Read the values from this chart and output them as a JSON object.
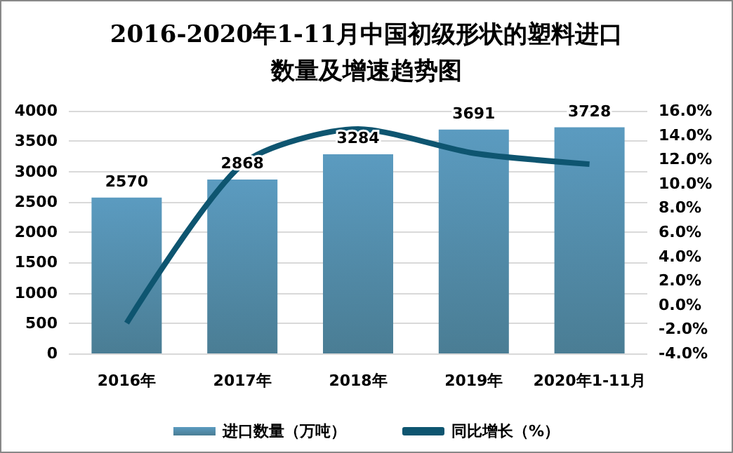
{
  "chart_data": {
    "type": "bar",
    "title": "2016-2020年1-11月中国初级形状的塑料进口数量及增速趋势图",
    "categories": [
      "2016年",
      "2017年",
      "2018年",
      "2019年",
      "2020年1-11月"
    ],
    "series": [
      {
        "name": "进口数量（万吨）",
        "color": "#5b9bc0",
        "values": [
          2570,
          2868,
          3284,
          3691,
          3728
        ],
        "data_labels": true
      },
      {
        "name": "同比增长（%）",
        "type": "line",
        "axis": "y2",
        "color": "#0e5570",
        "values": [
          -1.5,
          11.6,
          14.5,
          12.5,
          11.6
        ],
        "marker": "none"
      }
    ],
    "ylim": [
      0,
      4000
    ],
    "yticks": [
      0,
      500,
      1000,
      1500,
      2000,
      2500,
      3000,
      3500,
      4000
    ],
    "y2lim": [
      -4,
      16
    ],
    "y2ticks": [
      {
        "value": -4,
        "label": "-4.0%"
      },
      {
        "value": -2,
        "label": "-2.0%"
      },
      {
        "value": 0,
        "label": "0.0%"
      },
      {
        "value": 2,
        "label": "2.0%"
      },
      {
        "value": 4,
        "label": "4.0%"
      },
      {
        "value": 6,
        "label": "6.0%"
      },
      {
        "value": 8,
        "label": "8.0%"
      },
      {
        "value": 10,
        "label": "10.0%"
      },
      {
        "value": 12,
        "label": "12.0%"
      },
      {
        "value": 14,
        "label": "14.0%"
      },
      {
        "value": 16,
        "label": "16.0%"
      }
    ],
    "grid": "y",
    "legend": "bottom"
  }
}
